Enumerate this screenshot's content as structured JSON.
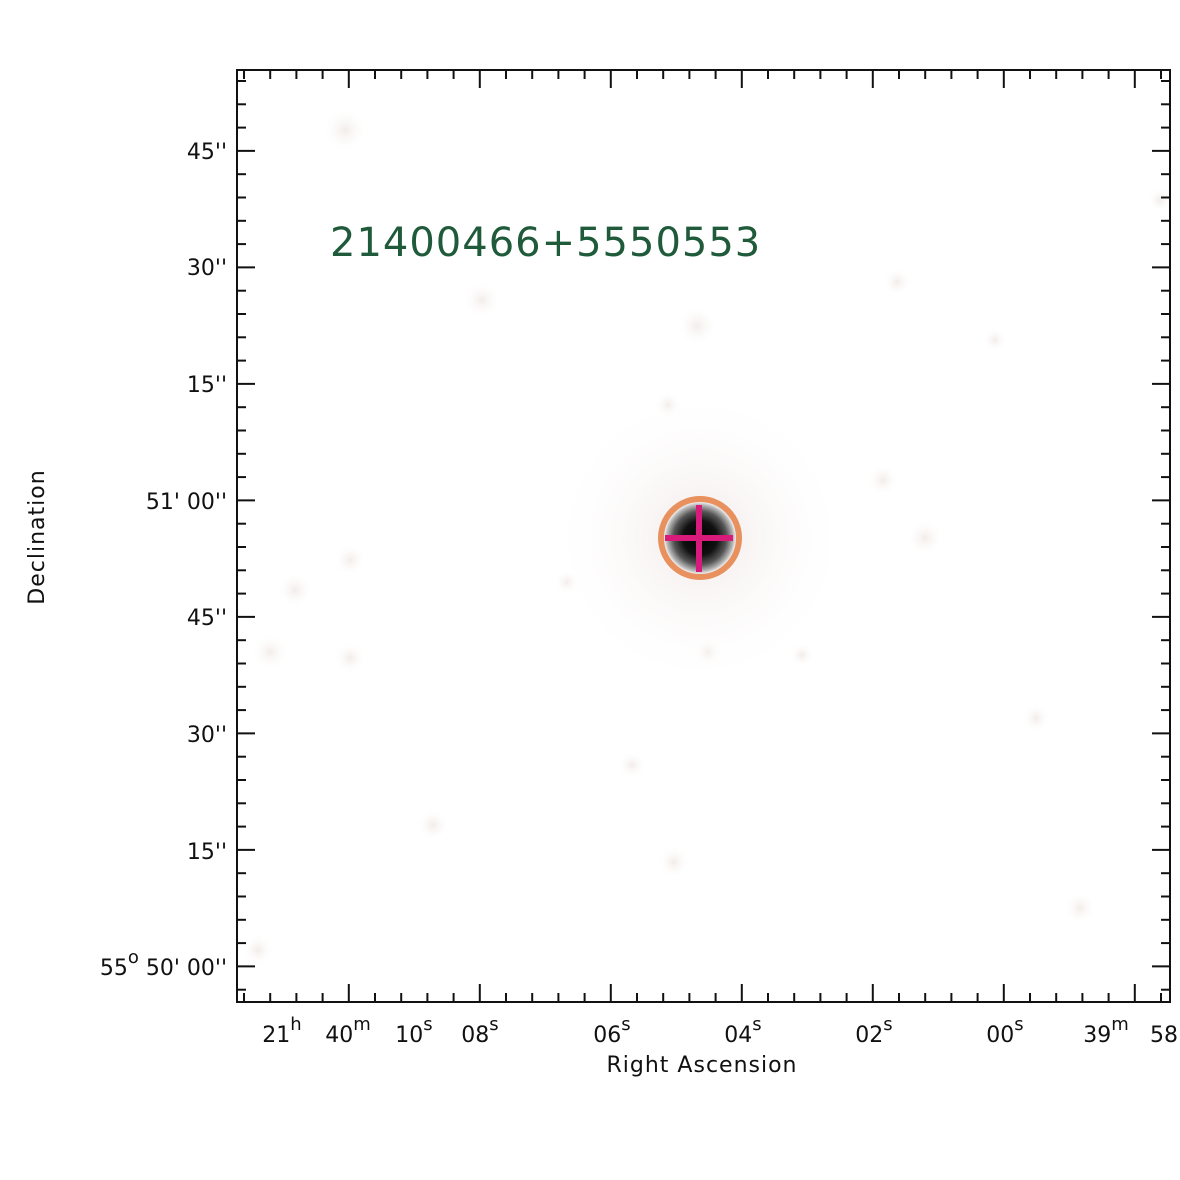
{
  "image": {
    "object_name": "21400466+5550553",
    "x_axis_title": "Right Ascension",
    "y_axis_title": "Declination",
    "colors": {
      "label": "#1f5a3a",
      "circle": "#e8915f",
      "crosshair": "#d81a7a",
      "axes": "#111111",
      "background": "#ffffff"
    },
    "ra_ticks": [
      {
        "text": "21",
        "sup": "h"
      },
      {
        "text": "40",
        "sup": "m"
      },
      {
        "text": "10",
        "sup": "s"
      },
      {
        "text": "08",
        "sup": "s"
      },
      {
        "text": "06",
        "sup": "s"
      },
      {
        "text": "04",
        "sup": "s"
      },
      {
        "text": "02",
        "sup": "s"
      },
      {
        "text": "00",
        "sup": "s"
      },
      {
        "text": "39",
        "sup": "m"
      },
      {
        "text": "58",
        "sup": ""
      }
    ],
    "dec_ticks": [
      {
        "text": "45''"
      },
      {
        "text": "30''"
      },
      {
        "text": "15''"
      },
      {
        "text": "51' 00''"
      },
      {
        "text": "45''"
      },
      {
        "text": "30''"
      },
      {
        "text": "15''"
      },
      {
        "text": "55",
        "sup": "o",
        "rest": " 50' 00''"
      }
    ]
  }
}
